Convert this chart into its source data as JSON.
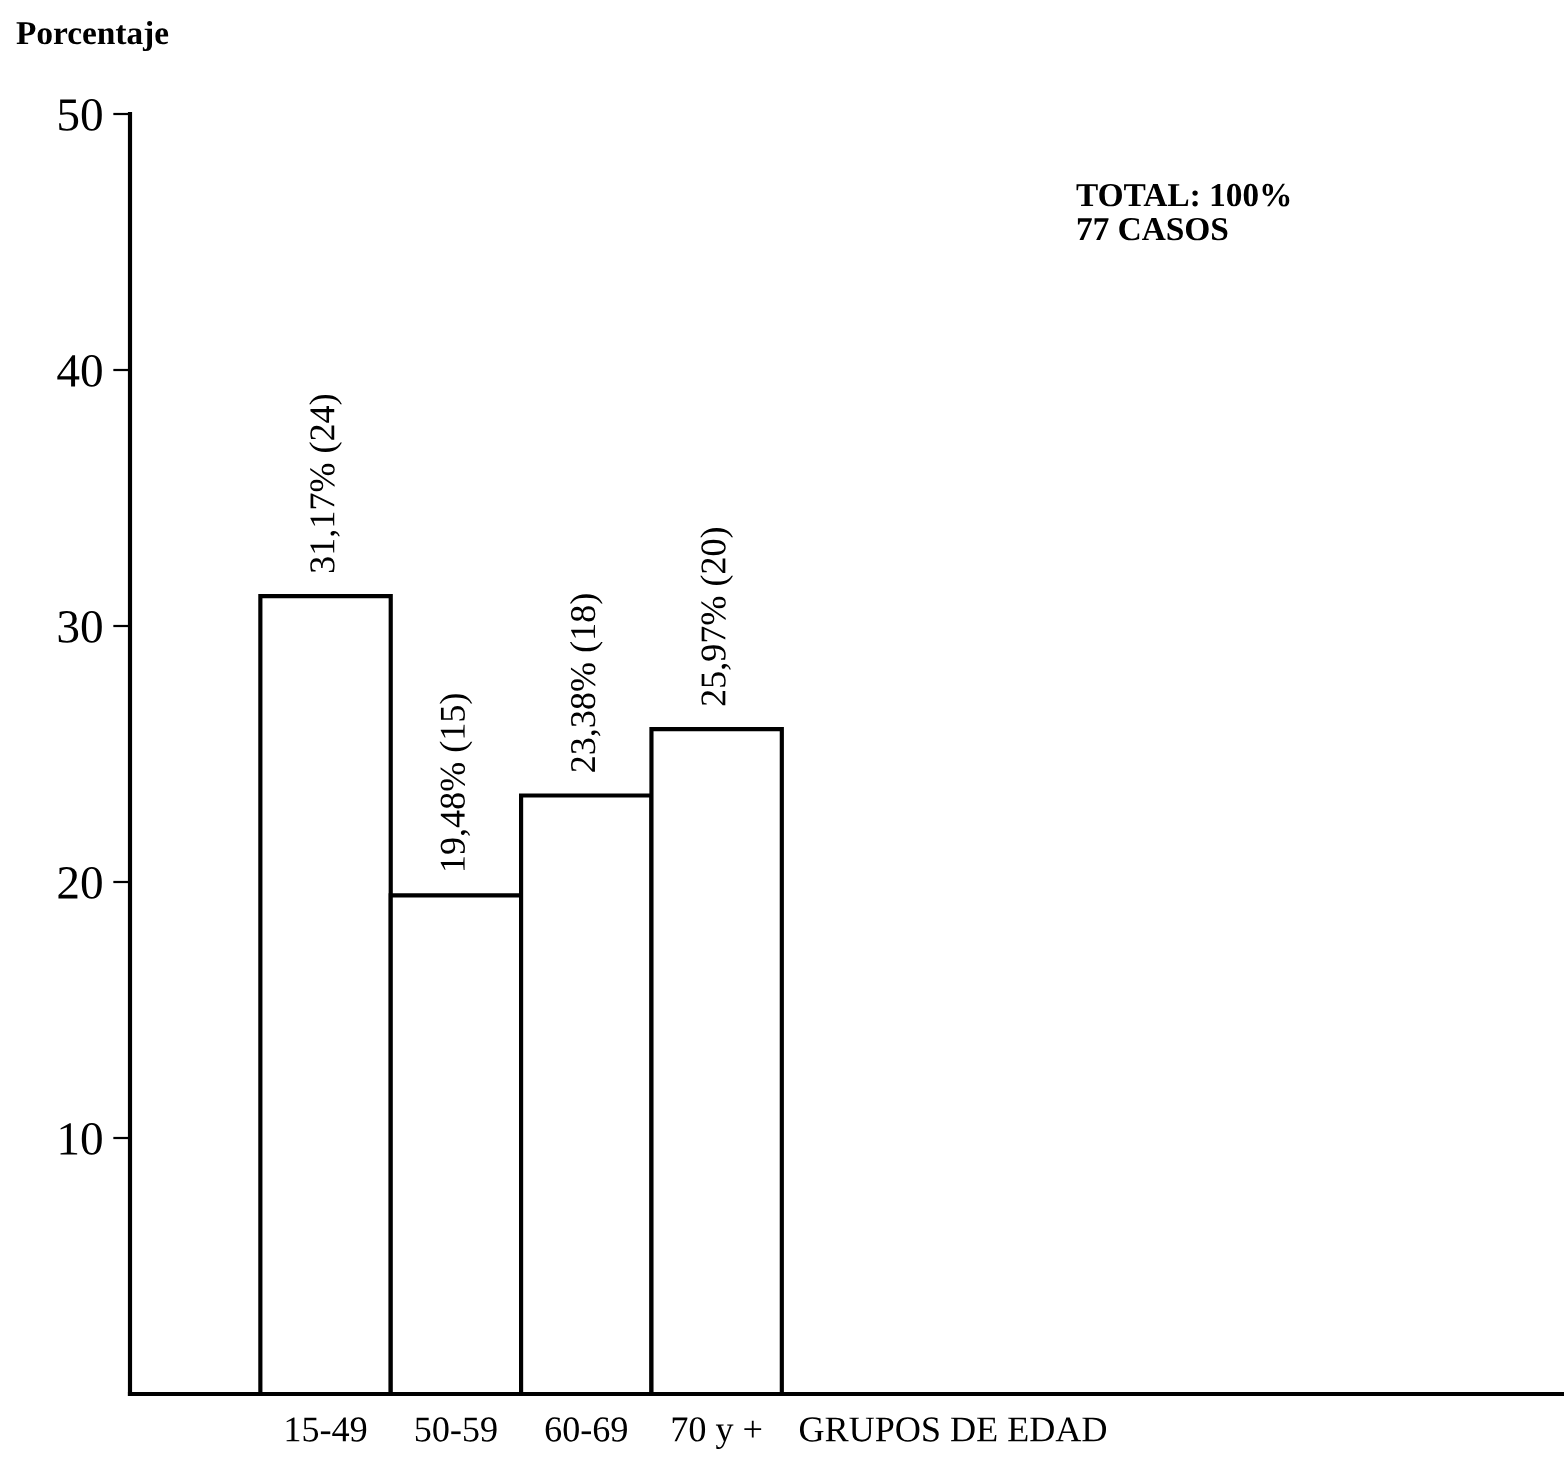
{
  "chart_data": {
    "type": "bar",
    "ylabel": "Porcentaje",
    "xlabel": "GRUPOS DE EDAD",
    "categories": [
      "15-49",
      "50-59",
      "60-69",
      "70 y +"
    ],
    "values": [
      31.17,
      19.48,
      23.38,
      25.97
    ],
    "value_labels": [
      "31,17% (24)",
      "19,48% (15)",
      "23,38% (18)",
      "25,97% (20)"
    ],
    "color": "#ffffff",
    "ylim": [
      0,
      50
    ],
    "yticks": [
      10,
      20,
      30,
      40,
      50
    ],
    "grid": false,
    "legend": false,
    "annotations": [
      "TOTAL: 100%",
      "77 CASOS"
    ]
  }
}
